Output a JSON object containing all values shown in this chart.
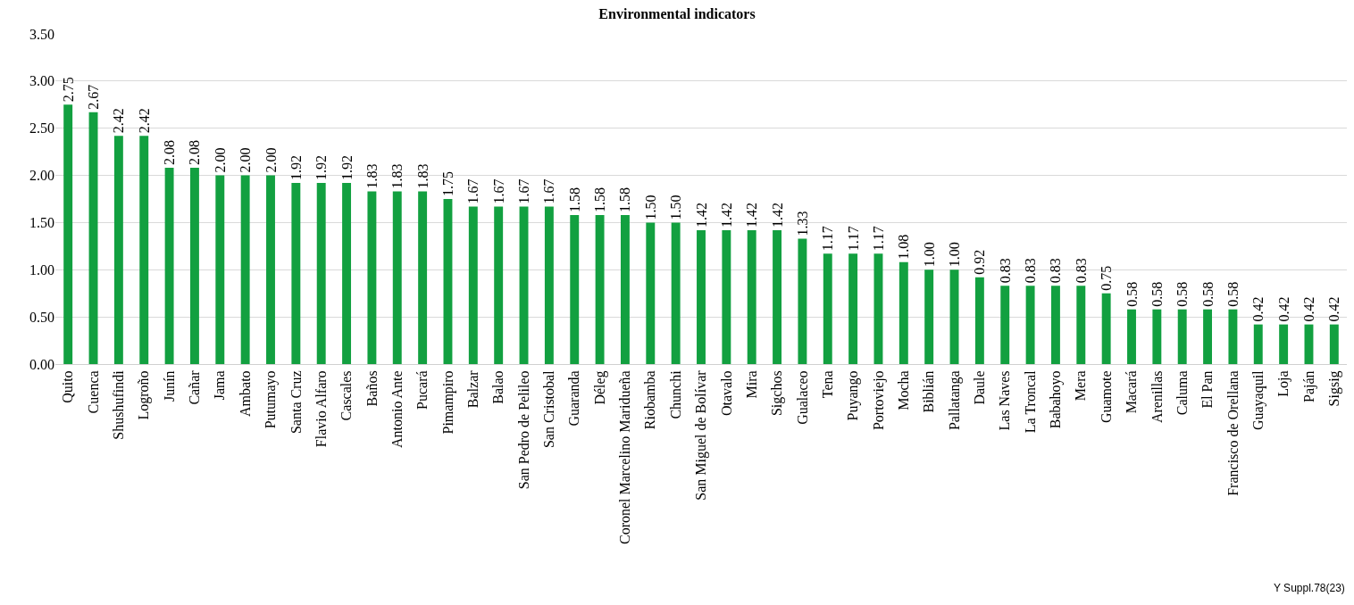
{
  "chart_data": {
    "type": "bar",
    "title": "Environmental indicators",
    "categories": [
      "Quito",
      "Cuenca",
      "Shushufindi",
      "Logroño",
      "Junín",
      "Cañar",
      "Jama",
      "Ambato",
      "Putumayo",
      "Santa Cruz",
      "Flavio Alfaro",
      "Cascales",
      "Baños",
      "Antonio Ante",
      "Pucará",
      "Pimampiro",
      "Balzar",
      "Balao",
      "San Pedro de Pelileo",
      "San Cristobal",
      "Guaranda",
      "Déleg",
      "Coronel Marcelino Maridueña",
      "Riobamba",
      "Chunchi",
      "San Miguel de Bolívar",
      "Otavalo",
      "Mira",
      "Sigchos",
      "Gualaceo",
      "Tena",
      "Puyango",
      "Portoviejo",
      "Mocha",
      "Biblián",
      "Pallatanga",
      "Daule",
      "Las Naves",
      "La Troncal",
      "Babahoyo",
      "Mera",
      "Guamote",
      "Macará",
      "Arenillas",
      "Caluma",
      "El Pan",
      "Francisco de Orellana",
      "Guayaquil",
      "Loja",
      "Paján",
      "Sigsig"
    ],
    "values": [
      2.75,
      2.67,
      2.42,
      2.42,
      2.08,
      2.08,
      2.0,
      2.0,
      2.0,
      1.92,
      1.92,
      1.92,
      1.83,
      1.83,
      1.83,
      1.75,
      1.67,
      1.67,
      1.67,
      1.67,
      1.58,
      1.58,
      1.58,
      1.5,
      1.5,
      1.42,
      1.42,
      1.42,
      1.42,
      1.33,
      1.17,
      1.17,
      1.17,
      1.08,
      1.0,
      1.0,
      0.92,
      0.83,
      0.83,
      0.83,
      0.83,
      0.75,
      0.58,
      0.58,
      0.58,
      0.58,
      0.58,
      0.42,
      0.42,
      0.42,
      0.42
    ],
    "value_labels": [
      "2.75",
      "2.67",
      "2.42",
      "2.42",
      "2.08",
      "2.08",
      "2.00",
      "2.00",
      "2.00",
      "1.92",
      "1.92",
      "1.92",
      "1.83",
      "1.83",
      "1.83",
      "1.75",
      "1.67",
      "1.67",
      "1.67",
      "1.67",
      "1.58",
      "1.58",
      "1.58",
      "1.50",
      "1.50",
      "1.42",
      "1.42",
      "1.42",
      "1.42",
      "1.33",
      "1.17",
      "1.17",
      "1.17",
      "1.08",
      "1.00",
      "1.00",
      "0.92",
      "0.83",
      "0.83",
      "0.83",
      "0.83",
      "0.75",
      "0.58",
      "0.58",
      "0.58",
      "0.58",
      "0.58",
      "0.42",
      "0.42",
      "0.42",
      "0.42"
    ],
    "color": "#12a040",
    "ylim": [
      0,
      3.5
    ],
    "yticks": [
      {
        "value": 0,
        "label": "0.00"
      },
      {
        "value": 0.5,
        "label": "0.50"
      },
      {
        "value": 1,
        "label": "1.00"
      },
      {
        "value": 1.5,
        "label": "1.50"
      },
      {
        "value": 2,
        "label": "2.00"
      },
      {
        "value": 2.5,
        "label": "2.50"
      },
      {
        "value": 3,
        "label": "3.00"
      },
      {
        "value": 3.5,
        "label": "3.50"
      }
    ],
    "grid": "y",
    "annotations": [
      "Y Suppl.78(23)"
    ]
  }
}
